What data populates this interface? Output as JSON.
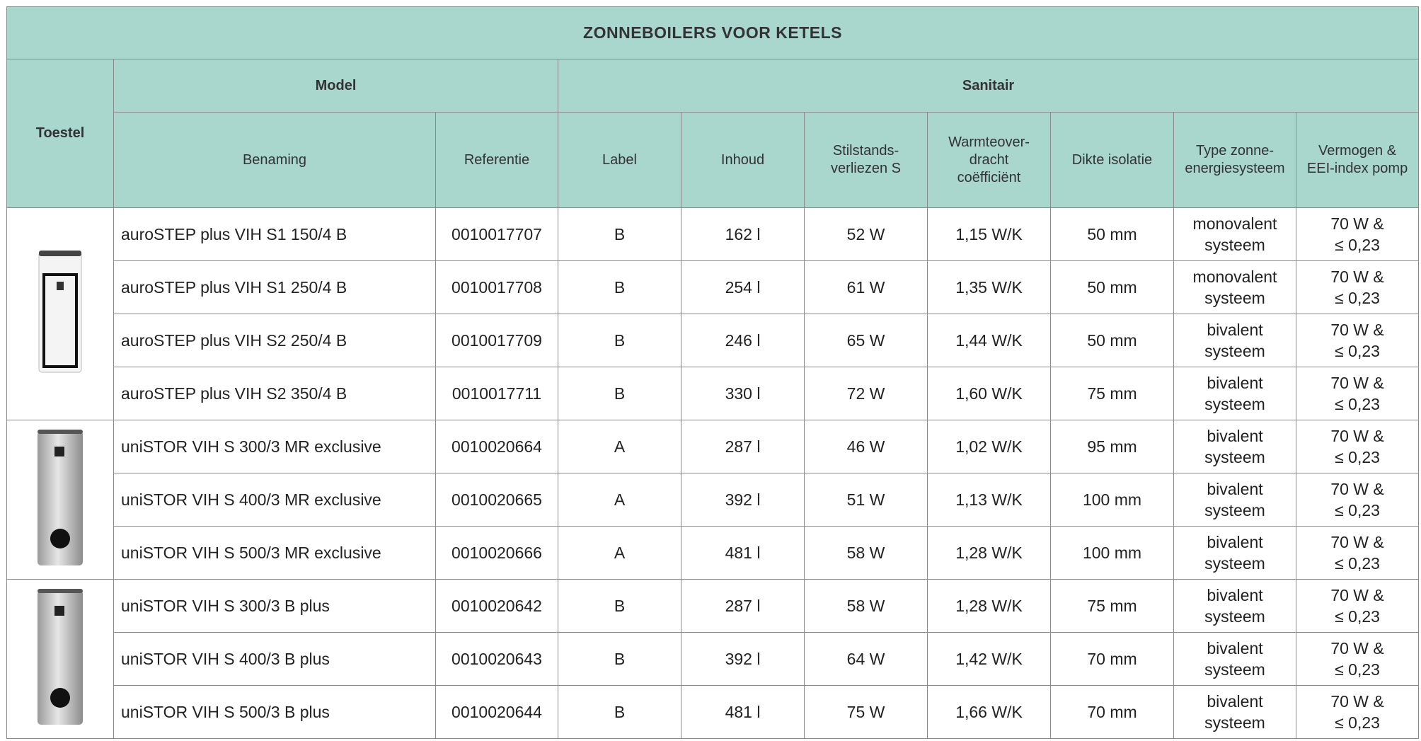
{
  "title": "ZONNEBOILERS VOOR KETELS",
  "header": {
    "toestel": "Toestel",
    "model": "Model",
    "sanitair": "Sanitair",
    "columns": [
      [
        "Benaming"
      ],
      [
        "Referentie"
      ],
      [
        "Label"
      ],
      [
        "Inhoud"
      ],
      [
        "Stilstands-",
        "verliezen S"
      ],
      [
        "Warmteover-",
        "dracht",
        "coëfficiënt"
      ],
      [
        "Dikte isolatie"
      ],
      [
        "Type zonne-",
        "energiesysteem"
      ],
      [
        "Vermogen &",
        "EEI-index pomp"
      ]
    ]
  },
  "groups": [
    {
      "rows": [
        [
          "auroSTEP plus VIH S1 150/4 B",
          "0010017707",
          "B",
          "162 l",
          "52 W",
          "1,15 W/K",
          "50 mm",
          [
            "monovalent",
            "systeem"
          ],
          [
            "70 W &",
            "≤ 0,23"
          ]
        ],
        [
          "auroSTEP plus VIH S1 250/4 B",
          "0010017708",
          "B",
          "254 l",
          "61 W",
          "1,35 W/K",
          "50 mm",
          [
            "monovalent",
            "systeem"
          ],
          [
            "70 W &",
            "≤ 0,23"
          ]
        ],
        [
          "auroSTEP plus VIH S2 250/4 B",
          "0010017709",
          "B",
          "246 l",
          "65 W",
          "1,44 W/K",
          "50 mm",
          [
            "bivalent",
            "systeem"
          ],
          [
            "70 W &",
            "≤ 0,23"
          ]
        ],
        [
          "auroSTEP plus VIH S2 350/4 B",
          "0010017711",
          "B",
          "330 l",
          "72 W",
          "1,60 W/K",
          "75 mm",
          [
            "bivalent",
            "systeem"
          ],
          [
            "70 W &",
            "≤ 0,23"
          ]
        ]
      ]
    },
    {
      "rows": [
        [
          "uniSTOR VIH S 300/3 MR exclusive",
          "0010020664",
          "A",
          "287 l",
          "46 W",
          "1,02 W/K",
          "95 mm",
          [
            "bivalent",
            "systeem"
          ],
          [
            "70 W &",
            "≤ 0,23"
          ]
        ],
        [
          "uniSTOR VIH S 400/3 MR exclusive",
          "0010020665",
          "A",
          "392 l",
          "51 W",
          "1,13 W/K",
          "100 mm",
          [
            "bivalent",
            "systeem"
          ],
          [
            "70 W &",
            "≤ 0,23"
          ]
        ],
        [
          "uniSTOR VIH S 500/3 MR exclusive",
          "0010020666",
          "A",
          "481 l",
          "58 W",
          "1,28 W/K",
          "100 mm",
          [
            "bivalent",
            "systeem"
          ],
          [
            "70 W &",
            "≤ 0,23"
          ]
        ]
      ]
    },
    {
      "rows": [
        [
          "uniSTOR VIH S 300/3 B plus",
          "0010020642",
          "B",
          "287 l",
          "58 W",
          "1,28 W/K",
          "75 mm",
          [
            "bivalent",
            "systeem"
          ],
          [
            "70 W &",
            "≤ 0,23"
          ]
        ],
        [
          "uniSTOR VIH S 400/3 B plus",
          "0010020643",
          "B",
          "392 l",
          "64 W",
          "1,42 W/K",
          "70 mm",
          [
            "bivalent",
            "systeem"
          ],
          [
            "70 W &",
            "≤ 0,23"
          ]
        ],
        [
          "uniSTOR VIH S 500/3 B plus",
          "0010020644",
          "B",
          "481 l",
          "75 W",
          "1,66 W/K",
          "70 mm",
          [
            "bivalent",
            "systeem"
          ],
          [
            "70 W &",
            "≤ 0,23"
          ]
        ]
      ]
    }
  ]
}
